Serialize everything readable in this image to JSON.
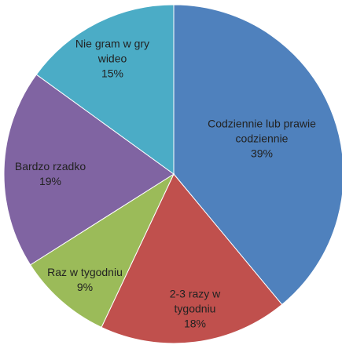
{
  "chart_data": {
    "type": "pie",
    "categories": [
      "Codziennie lub prawie codziennie",
      "2-3 razy w tygodniu",
      "Raz w tygodniu",
      "Bardzo rzadko",
      "Nie gram w gry wideo"
    ],
    "values": [
      39,
      18,
      9,
      19,
      15
    ],
    "value_labels": [
      "39%",
      "18%",
      "9%",
      "19%",
      "15%"
    ],
    "colors": [
      "#4f81bd",
      "#c0504d",
      "#9bbb59",
      "#8064a2",
      "#4bacc6"
    ]
  }
}
